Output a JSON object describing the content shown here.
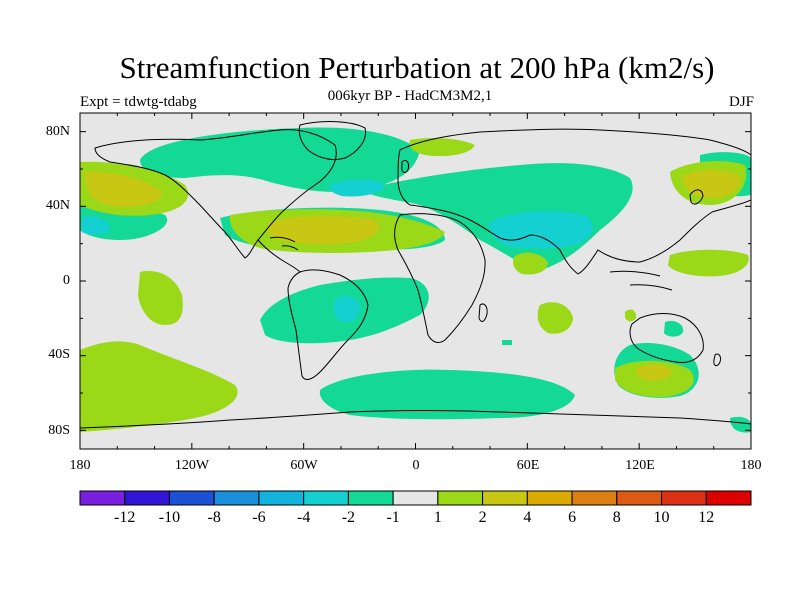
{
  "title": "Streamfunction Perturbation at 200 hPa (km2/s)",
  "subtitle": "006kyr BP - HadCM3M2,1",
  "experiment": "Expt = tdwtg-tdabg",
  "season": "DJF",
  "axes": {
    "lat_labels": [
      "80N",
      "40N",
      "0",
      "40S",
      "80S"
    ],
    "lon_labels": [
      "180",
      "120W",
      "60W",
      "0",
      "60E",
      "120E",
      "180"
    ]
  },
  "colorbar": {
    "colors": [
      "#7a1fe0",
      "#3214d6",
      "#1d50d4",
      "#1a8fdc",
      "#12b4dc",
      "#14d0d0",
      "#14d896",
      "#e6e6e6",
      "#9ad818",
      "#c8c814",
      "#dcaa00",
      "#dc7f12",
      "#dc5a12",
      "#dc3214",
      "#dc0000"
    ],
    "labels": [
      "-12",
      "-10",
      "-8",
      "-6",
      "-4",
      "-2",
      "-1",
      "1",
      "2",
      "4",
      "6",
      "8",
      "10",
      "12"
    ]
  },
  "field_colors": {
    "background": "#e6e6e6",
    "neg1": "#14d896",
    "neg2": "#14d0d0",
    "pos1": "#9ad818",
    "pos2": "#c8c814"
  }
}
